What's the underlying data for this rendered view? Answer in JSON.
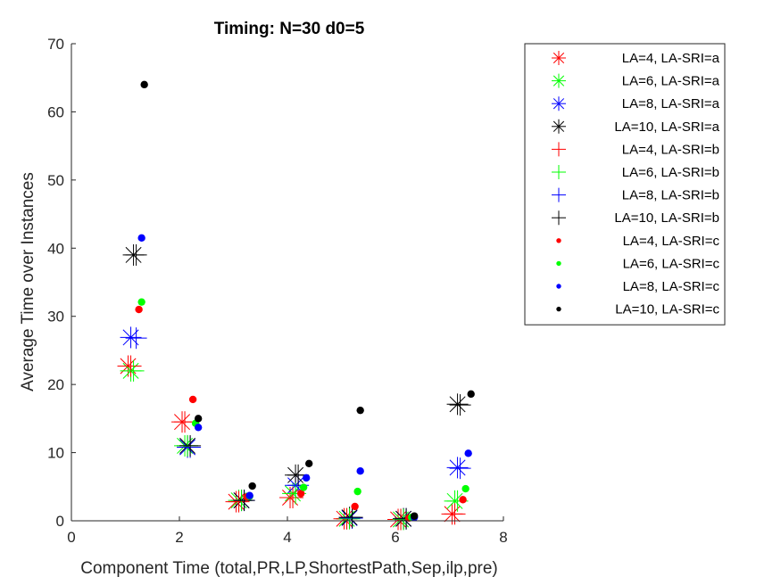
{
  "chart_data": {
    "type": "scatter",
    "title": "Timing:  N=30 d0=5",
    "xlabel": "Component Time (total,PR,LP,ShortestPath,Sep,ilp,pre)",
    "ylabel": "Average Time over Instances",
    "xlim": [
      0,
      8
    ],
    "ylim": [
      0,
      70
    ],
    "xticks": [
      "0",
      "2",
      "4",
      "6",
      "8"
    ],
    "yticks": [
      "0",
      "10",
      "20",
      "30",
      "40",
      "50",
      "60",
      "70"
    ],
    "grid": false,
    "legend_position": "top-right",
    "series": [
      {
        "name": "LA=4, LA-SRI=a",
        "marker": "asterisk",
        "color": "#ff0000",
        "x": [
          1.05,
          2.05,
          3.05,
          4.05,
          5.05,
          6.05,
          7.05
        ],
        "y": [
          22.7,
          14.5,
          2.8,
          3.4,
          0.3,
          0.2,
          1.0
        ]
      },
      {
        "name": "LA=6, LA-SRI=a",
        "marker": "asterisk",
        "color": "#00ff00",
        "x": [
          1.1,
          2.1,
          3.1,
          4.1,
          5.1,
          6.1,
          7.1
        ],
        "y": [
          22.0,
          11.0,
          3.0,
          4.0,
          0.3,
          0.2,
          2.9
        ]
      },
      {
        "name": "LA=8, LA-SRI=a",
        "marker": "asterisk",
        "color": "#0000ff",
        "x": [
          1.1,
          2.15,
          3.15,
          4.15,
          5.15,
          6.15,
          7.15
        ],
        "y": [
          26.9,
          10.8,
          3.0,
          5.2,
          0.4,
          0.3,
          7.8
        ]
      },
      {
        "name": "LA=10, LA-SRI=a",
        "marker": "asterisk",
        "color": "#000000",
        "x": [
          1.15,
          2.15,
          3.15,
          4.15,
          5.15,
          6.15,
          7.15
        ],
        "y": [
          39.0,
          11.0,
          3.0,
          6.7,
          0.5,
          0.3,
          17.1
        ]
      },
      {
        "name": "LA=4, LA-SRI=b",
        "marker": "plus",
        "color": "#ff0000",
        "x": [
          1.1,
          2.1,
          3.1,
          4.1,
          5.1,
          6.1,
          7.1
        ],
        "y": [
          22.7,
          14.5,
          2.8,
          3.4,
          0.3,
          0.2,
          1.0
        ]
      },
      {
        "name": "LA=6, LA-SRI=b",
        "marker": "plus",
        "color": "#00ff00",
        "x": [
          1.15,
          2.15,
          3.15,
          4.15,
          5.15,
          6.15,
          7.15
        ],
        "y": [
          22.0,
          11.0,
          3.0,
          4.0,
          0.3,
          0.2,
          2.9
        ]
      },
      {
        "name": "LA=8, LA-SRI=b",
        "marker": "plus",
        "color": "#0000ff",
        "x": [
          1.2,
          2.2,
          3.2,
          4.2,
          5.2,
          6.2,
          7.2
        ],
        "y": [
          26.8,
          10.8,
          3.0,
          5.2,
          0.4,
          0.3,
          7.7
        ]
      },
      {
        "name": "LA=10, LA-SRI=b",
        "marker": "plus",
        "color": "#000000",
        "x": [
          1.2,
          2.2,
          3.2,
          4.2,
          5.2,
          6.2,
          7.2
        ],
        "y": [
          39.0,
          11.0,
          3.0,
          6.7,
          0.5,
          0.3,
          17.0
        ]
      },
      {
        "name": "LA=4, LA-SRI=c",
        "marker": "dot",
        "color": "#ff0000",
        "x": [
          1.25,
          2.25,
          3.25,
          4.25,
          5.25,
          6.25,
          7.25
        ],
        "y": [
          31.0,
          17.8,
          3.5,
          4.0,
          2.1,
          0.4,
          3.1
        ]
      },
      {
        "name": "LA=6, LA-SRI=c",
        "marker": "dot",
        "color": "#00ff00",
        "x": [
          1.3,
          2.3,
          3.3,
          4.3,
          5.3,
          6.3,
          7.3
        ],
        "y": [
          32.1,
          14.3,
          3.6,
          4.9,
          4.3,
          0.5,
          4.7
        ]
      },
      {
        "name": "LA=8, LA-SRI=c",
        "marker": "dot",
        "color": "#0000ff",
        "x": [
          1.3,
          2.35,
          3.3,
          4.35,
          5.35,
          6.35,
          7.35
        ],
        "y": [
          41.5,
          13.7,
          3.7,
          6.3,
          7.3,
          0.5,
          9.9
        ]
      },
      {
        "name": "LA=10, LA-SRI=c",
        "marker": "dot",
        "color": "#000000",
        "x": [
          1.35,
          2.35,
          3.35,
          4.4,
          5.35,
          6.35,
          7.4
        ],
        "y": [
          64.0,
          15.0,
          5.1,
          8.4,
          16.2,
          0.7,
          18.6
        ]
      }
    ]
  }
}
